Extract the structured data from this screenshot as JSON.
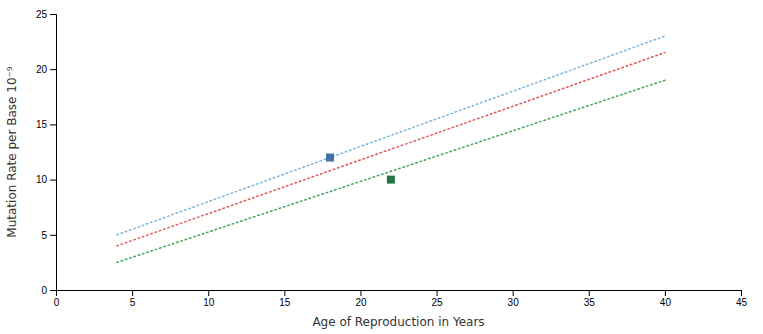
{
  "chart_data": {
    "type": "line",
    "xlabel": "Age of Reproduction in Years",
    "ylabel": "Mutation Rate per Base 10⁻⁹",
    "xlim": [
      0,
      45
    ],
    "ylim": [
      0,
      25
    ],
    "xticks": [
      0,
      5,
      10,
      15,
      20,
      25,
      30,
      35,
      40,
      45
    ],
    "yticks": [
      0,
      5,
      10,
      15,
      20,
      25
    ],
    "grid": false,
    "series": [
      {
        "color": "#7ab4d8",
        "line_style": "dotted",
        "x": [
          4,
          40
        ],
        "values": [
          5.0,
          23.0
        ]
      },
      {
        "color": "#e05555",
        "line_style": "dotted",
        "x": [
          4,
          40
        ],
        "values": [
          4.0,
          21.5
        ]
      },
      {
        "color": "#3da858",
        "line_style": "dotted",
        "x": [
          4,
          40
        ],
        "values": [
          2.5,
          19.0
        ]
      },
      {
        "type": "scatter",
        "marker": "square",
        "color": "#4472a8",
        "x": [
          18
        ],
        "values": [
          12
        ]
      },
      {
        "type": "scatter",
        "marker": "square",
        "color": "#217843",
        "x": [
          22
        ],
        "values": [
          10
        ]
      }
    ]
  }
}
